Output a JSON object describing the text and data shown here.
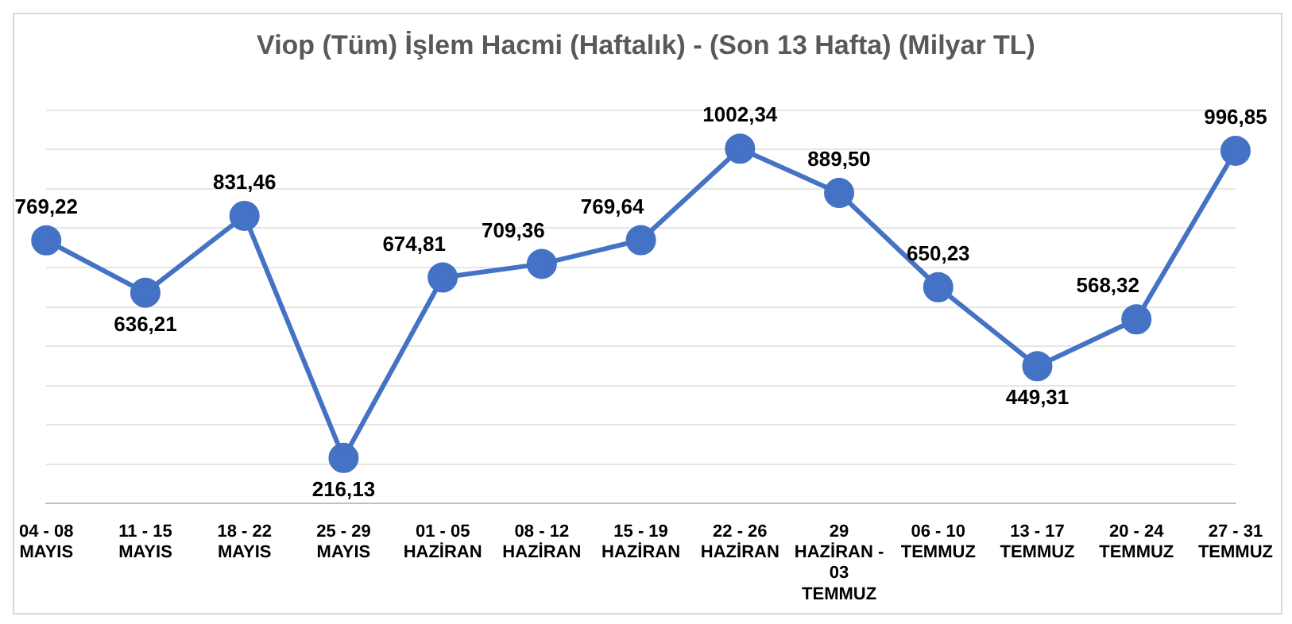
{
  "chart_data": {
    "type": "line",
    "title": "Viop (Tüm) İşlem Hacmi (Haftalık) - (Son 13 Hafta) (Milyar TL)",
    "categories": [
      "04 - 08\nMAYIS",
      "11 - 15\nMAYIS",
      "18 - 22\nMAYIS",
      "25 - 29\nMAYIS",
      "01 - 05\nHAZİRAN",
      "08 - 12\nHAZİRAN",
      "15 - 19\nHAZİRAN",
      "22 - 26\nHAZİRAN",
      "29\nHAZİRAN -\n03\nTEMMUZ",
      "06 - 10\nTEMMUZ",
      "13 - 17\nTEMMUZ",
      "20 - 24\nTEMMUZ",
      "27 - 31\nTEMMUZ"
    ],
    "series": [
      {
        "color": "#4472c4",
        "values": [
          769.22,
          636.21,
          831.46,
          216.13,
          674.81,
          709.36,
          769.64,
          1002.34,
          889.5,
          650.23,
          449.31,
          568.32,
          996.85
        ],
        "value_labels": [
          "769,22",
          "636,21",
          "831,46",
          "216,13",
          "674,81",
          "709,36",
          "769,64",
          "1002,34",
          "889,50",
          "650,23",
          "449,31",
          "568,32",
          "996,85"
        ]
      }
    ],
    "data_labels": true,
    "grid": "y",
    "marker": "circle",
    "line_style": "solid",
    "legend": false,
    "tick_labels": "x"
  }
}
